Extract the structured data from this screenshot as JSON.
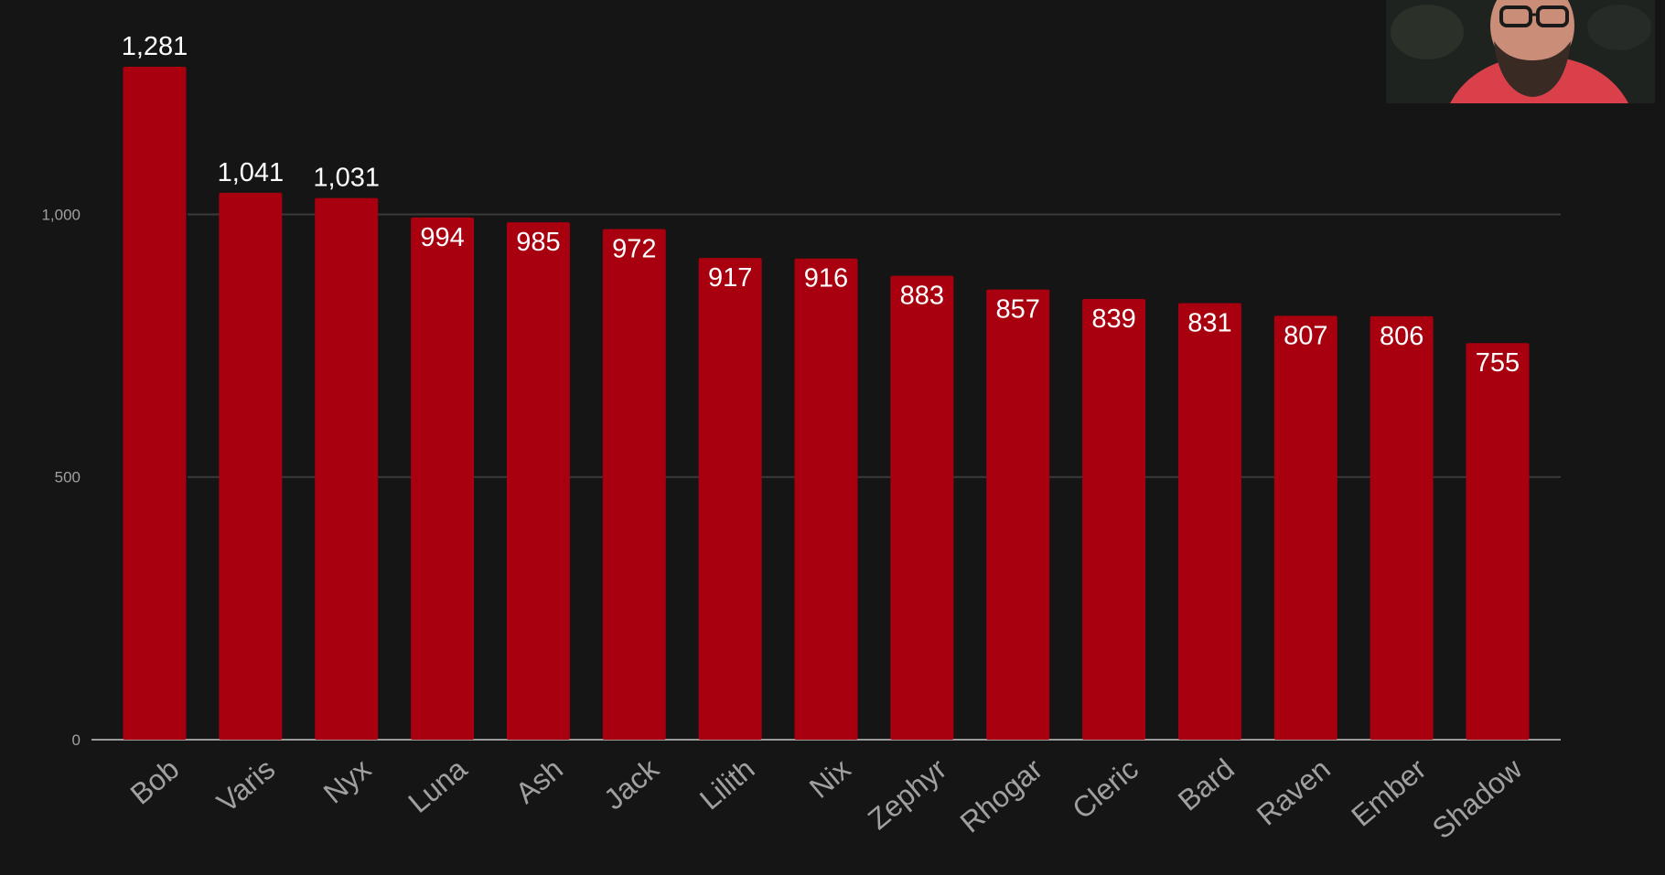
{
  "chart_data": {
    "type": "bar",
    "categories": [
      "Bob",
      "Varis",
      "Nyx",
      "Luna",
      "Ash",
      "Jack",
      "Lilith",
      "Nix",
      "Zephyr",
      "Rhogar",
      "Cleric",
      "Bard",
      "Raven",
      "Ember",
      "Shadow"
    ],
    "values": [
      1281,
      1041,
      1031,
      994,
      985,
      972,
      917,
      916,
      883,
      857,
      839,
      831,
      807,
      806,
      755
    ],
    "data_labels": [
      "1,281",
      "1,041",
      "1,031",
      "994",
      "985",
      "972",
      "917",
      "916",
      "883",
      "857",
      "839",
      "831",
      "807",
      "806",
      "755"
    ],
    "y_ticks": [
      0,
      500,
      1000
    ],
    "y_tick_labels": [
      "0",
      "500",
      "1,000"
    ],
    "ylim": [
      0,
      1281
    ],
    "grid": true,
    "title": "",
    "xlabel": "",
    "ylabel": "",
    "colors": {
      "background": "#151515",
      "bar": "#a8000f",
      "gridline": "#3a3a3a",
      "baseline": "#9a9a9a",
      "axis_text": "#a0a0a0",
      "label_text": "#ffffff"
    }
  },
  "webcam": {
    "colors": {
      "shirt": "#d9404a",
      "skin": "#c98d78",
      "beard": "#3a2a24",
      "background": "#1f2320"
    }
  }
}
